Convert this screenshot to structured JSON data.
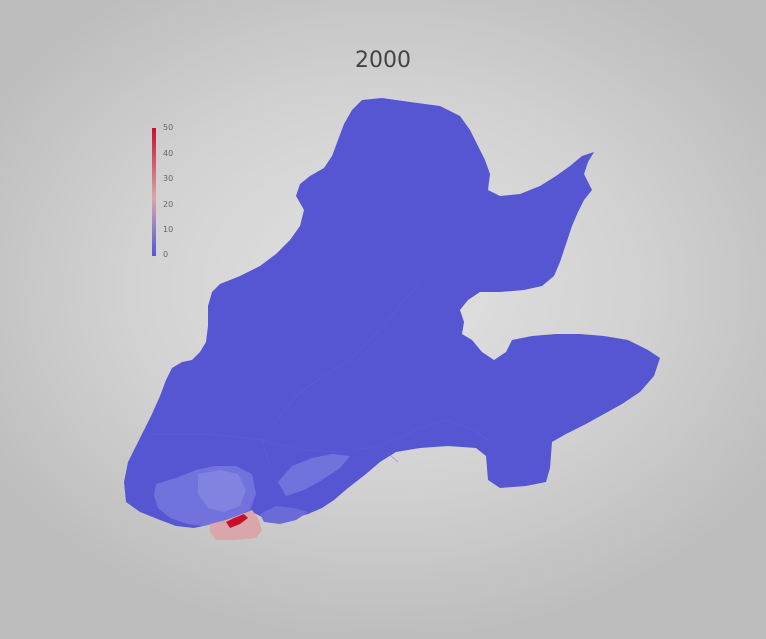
{
  "map": {
    "title": "2000",
    "colors": {
      "low": "#5656d2",
      "mid": "#d9a7ab",
      "high": "#c8102e"
    },
    "legend": {
      "ticks": [
        "50",
        "40",
        "30",
        "20",
        "10",
        "0"
      ],
      "min": 0,
      "max": 50
    }
  }
}
